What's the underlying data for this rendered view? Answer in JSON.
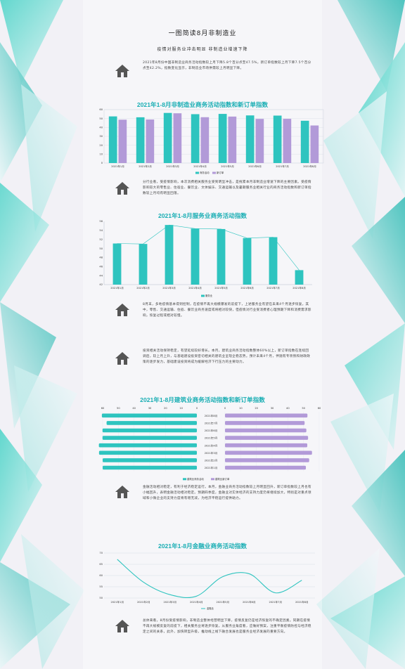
{
  "header": {
    "title": "一图简读8月非制造业",
    "subtitle": "疫情对服务业冲击明显  非制造业增速下降"
  },
  "paragraphs": [
    "2021年8月份中国非制造业商务活动指数较上月下降5.8个百分点至47.5%，新订单指数较上月下降7.5个百分点至42.2%，指数变化显示，非制造业市场供需较上月明显下降。",
    "分行业看，受疫情影响，本次消费相关服务业受到明显冲击，是拖累本月非制造业增速下降的主要因素。受疫情影响较大的零售业、住宿业、餐饮业、文体娱乐、交通运输以及暑期服务业相关行业的商务活动指数和新订单指数较上月均有明显回落。",
    "8月末，多地疫情基本得到控制，在疫情不再大规模爆发的前提下，上述服务业有望在未来4个月逐步恢复。其中，零售、交通运输、住宿、餐饮业商务速度或将相对较快，但疫情对行业受消费者心理预期下降和消费需求影响，恢复过程或相对较慢。",
    "投资相关活动保持稳定，有望延续较好增长。本月，建筑业商务活动指数整体60%以上，新订单指数在连续回调后，较上月上升，与基础建设投资密切相关的建筑业呈现企稳态势。预计未来4个月，伴随有专项债和财政政策的逐步发力，基础建设投资将成为缓解经济下行压力的主要动力。",
    "金融活动相对稳定，有利于经济稳定运行。本月，金融业商务活动指数较上月明显回升，新订单指数较上月也有小幅回升，表明金融活动相对稳定。预期四季度，金融业对实体经济的支持力度仍将继续加大，特别是对重点领域和小微企业的支持力度将有增无减，为经济平稳运行提供助力。",
    "总体来看，8月份受疫情影响，非制造业整体经营明显下降，疫情反复仍是经济恢复的不确定因素。同期在疫情不再大规模反复的前提下，相关服务业将逐步恢复。从服务业角度看，应做好预案，注重平衡疫情防控与经济稳定之间的关系，此外，加快转型升级，推动线上线下融合发展也是服务业经济发展的重要方向。"
  ],
  "icons": {
    "home": "home-icon"
  },
  "colors": {
    "teal": "#2ec4bf",
    "purple": "#b29ad8",
    "title": "#1aaeb4"
  },
  "chart_data": [
    {
      "type": "bar",
      "title": "2021年1-8月非制造业商务活动指数和新订单指数",
      "categories": [
        "2021年1月",
        "2021年2月",
        "2021年3月",
        "2021年4月",
        "2021年5月",
        "2021年6月",
        "2021年7月",
        "2021年8月"
      ],
      "series": [
        {
          "name": "商务活动",
          "values": [
            52.4,
            51.4,
            56.3,
            54.9,
            55.2,
            53.5,
            53.3,
            47.5
          ]
        },
        {
          "name": "新订单",
          "values": [
            48.7,
            48.9,
            55.9,
            51.5,
            52.2,
            49.6,
            49.7,
            42.2
          ]
        }
      ],
      "yticks": [
        0,
        10,
        20,
        30,
        40,
        50,
        60
      ],
      "ylim": [
        0,
        60
      ],
      "legend": "bottom"
    },
    {
      "type": "bar",
      "title": "2021年1-8月服务业商务活动指数",
      "categories": [
        "2021年1月",
        "2021年2月",
        "2021年3月",
        "2021年4月",
        "2021年5月",
        "2021年6月",
        "2021年7月",
        "2021年8月"
      ],
      "series": [
        {
          "name": "服务业",
          "values": [
            51.1,
            51.0,
            55.2,
            54.4,
            54.3,
            52.3,
            52.5,
            45.2
          ]
        }
      ],
      "yticks": [
        42,
        44,
        46,
        48,
        50,
        52,
        54,
        56
      ],
      "ylim": [
        42,
        56
      ],
      "legend": "bottom"
    },
    {
      "type": "bar",
      "title": "2021年1-8月建筑业商务活动指数和新订单指数",
      "categories": [
        "2021年8月",
        "2021年7月",
        "2021年6月",
        "2021年5月",
        "2021年4月",
        "2021年3月",
        "2021年2月",
        "2021年1月"
      ],
      "series": [
        {
          "name": "建筑业商务活动",
          "values": [
            60.5,
            57.5,
            60.1,
            60.1,
            62.4,
            62.3,
            60.0,
            60.0
          ]
        },
        {
          "name": "建筑业新订单",
          "values": [
            52.5,
            50.7,
            51.8,
            52.9,
            52.4,
            55.4,
            53.6,
            51.5
          ]
        }
      ],
      "xticks_left": [
        60,
        50,
        40,
        30,
        20,
        10,
        0
      ],
      "xticks_right": [
        0,
        10,
        20,
        30,
        40,
        50,
        60
      ],
      "legend": "bottom"
    },
    {
      "type": "line",
      "title": "2021年1-8月金融业商务活动指数",
      "categories": [
        "2021年1月",
        "2021年2月",
        "2021年3月",
        "2021年4月",
        "2021年5月",
        "2021年6月",
        "2021年7月",
        "2021年8月"
      ],
      "series": [
        {
          "name": "金融业",
          "values": [
            67.2,
            57.0,
            51.5,
            50.8,
            59.5,
            60.8,
            52.3,
            57.9
          ]
        }
      ],
      "yticks": [
        50,
        55,
        60,
        65,
        70
      ],
      "ylim": [
        50,
        70
      ],
      "legend": "bottom"
    }
  ]
}
